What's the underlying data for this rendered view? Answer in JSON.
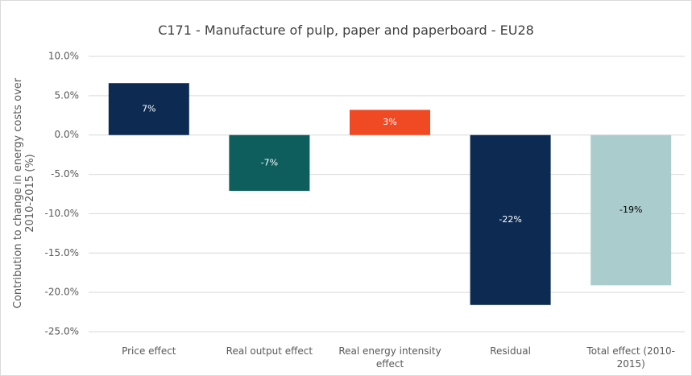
{
  "chart_data": {
    "type": "bar",
    "title": "C171 - Manufacture of pulp, paper and paperboard - EU28",
    "y_label": "Contribution to change in energy costs over 2010-2015 (%)",
    "categories": [
      "Price effect",
      "Real output effect",
      "Real energy intensity effect",
      "Residual",
      "Total effect (2010-2015)"
    ],
    "values": [
      6.6,
      -7.1,
      3.2,
      -21.6,
      -19.1
    ],
    "value_labels": [
      "7%",
      "-7%",
      "3%",
      "-22%",
      "-19%"
    ],
    "colors": [
      "#0d2b52",
      "#0e5e5e",
      "#f04a24",
      "#0d2b52",
      "#abcccd"
    ],
    "ylim": [
      -25,
      10
    ],
    "yticks": [
      {
        "value": 10,
        "label": "10.0%"
      },
      {
        "value": 5,
        "label": "5.0%"
      },
      {
        "value": 0,
        "label": "0.0%"
      },
      {
        "value": -5,
        "label": "-5.0%"
      },
      {
        "value": -10,
        "label": "-10.0%"
      },
      {
        "value": -15,
        "label": "-15.0%"
      },
      {
        "value": -20,
        "label": "-20.0%"
      },
      {
        "value": -25,
        "label": "-25.0%"
      }
    ],
    "grid": true
  }
}
